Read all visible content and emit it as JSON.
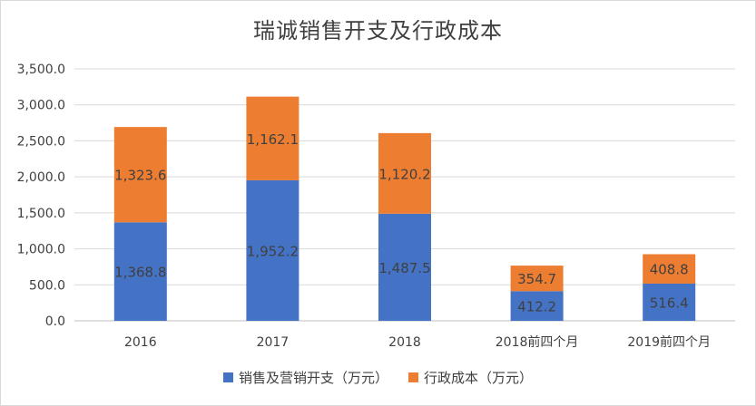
{
  "chart_data": {
    "type": "bar",
    "stacked": true,
    "title": "瑞诚销售开支及行政成本",
    "categories": [
      "2016",
      "2017",
      "2018",
      "2018前四个月",
      "2019前四个月"
    ],
    "series": [
      {
        "name": "销售及营销开支（万元）",
        "color": "#4472c4",
        "values": [
          1368.8,
          1952.2,
          1487.5,
          412.2,
          516.4
        ],
        "labels": [
          "1,368.8",
          "1,952.2",
          "1,487.5",
          "412.2",
          "516.4"
        ]
      },
      {
        "name": "行政成本（万元）",
        "color": "#ed7d31",
        "values": [
          1323.6,
          1162.1,
          1120.2,
          354.7,
          408.8
        ],
        "labels": [
          "1,323.6",
          "1,162.1",
          "1,120.2",
          "354.7",
          "408.8"
        ]
      }
    ],
    "y_ticks": [
      "0.0",
      "500.0",
      "1,000.0",
      "1,500.0",
      "2,000.0",
      "2,500.0",
      "3,000.0",
      "3,500.0"
    ],
    "ylim": [
      0,
      3500
    ],
    "grid": true,
    "legend_position": "bottom"
  }
}
